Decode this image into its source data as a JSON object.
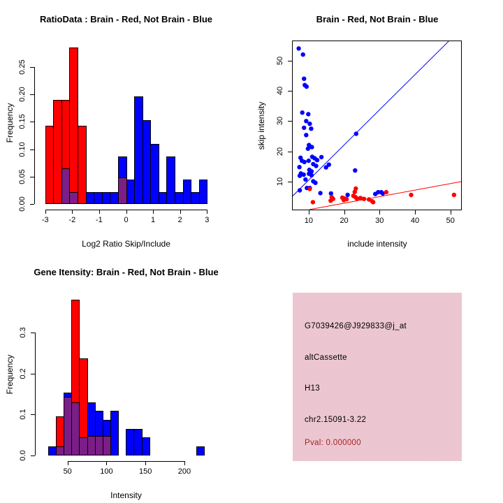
{
  "colors": {
    "red": "#FF0000",
    "blue": "#0000FF",
    "overlap": "#7B1E87",
    "pval_text": "#A82424",
    "info_bg": "#ECC4CF",
    "axis": "#000000"
  },
  "panels": {
    "ratio_hist": {
      "title": "RatioData : Brain - Red, Not Brain - Blue",
      "xlabel": "Log2 Ratio Skip/Include",
      "ylabel": "Frequency"
    },
    "scatter": {
      "title": "Brain - Red, Not Brain - Blue",
      "xlabel": "include intensity",
      "ylabel": "skip intensity"
    },
    "gene_hist": {
      "title": "Gene Itensity: Brain - Red, Not Brain - Blue",
      "xlabel": "Intensity",
      "ylabel": "Frequency"
    },
    "info_box": {
      "probe_id": "G7039426@J929833@j_at",
      "event_type": "altCassette",
      "sample_id": "H13",
      "locus": "chr2.15091-3.22",
      "pval": "Pval: 0.000000"
    }
  },
  "chart_data": [
    {
      "id": "ratio",
      "type": "bar",
      "subtype": "overlaid-histogram",
      "title": "RatioData : Brain - Red, Not Brain - Blue",
      "xlabel": "Log2 Ratio Skip/Include",
      "ylabel": "Frequency",
      "bin_width": 0.3,
      "xlim": [
        -3.2,
        3.2
      ],
      "ylim": [
        0,
        0.297
      ],
      "grid": false,
      "xticks": [
        -3,
        -2,
        -1,
        0,
        1,
        2,
        3
      ],
      "xtick_labels": [
        "-3",
        "-2",
        "-1",
        "0",
        "1",
        "2",
        "3"
      ],
      "yticks": [
        0,
        0.05,
        0.1,
        0.15,
        0.2,
        0.25
      ],
      "ytick_labels": [
        "0.00",
        "0.05",
        "0.10",
        "0.15",
        "0.20",
        "0.25"
      ],
      "series": [
        {
          "name": "brain-red",
          "color": "red",
          "bins": [
            [
              -3,
              0.143
            ],
            [
              -2.7,
              0.19
            ],
            [
              -2.4,
              0.19
            ],
            [
              -2.1,
              0.285
            ],
            [
              -1.8,
              0.143
            ]
          ]
        },
        {
          "name": "not-brain-blue",
          "color": "blue",
          "bins": [
            [
              -1.5,
              0.022
            ],
            [
              -1.2,
              0.022
            ],
            [
              -0.9,
              0.022
            ],
            [
              -0.6,
              0.022
            ],
            [
              -0.3,
              0.087
            ],
            [
              0,
              0.044
            ],
            [
              0.3,
              0.196
            ],
            [
              0.6,
              0.153
            ],
            [
              0.9,
              0.109
            ],
            [
              1.2,
              0.022
            ],
            [
              1.5,
              0.087
            ],
            [
              1.8,
              0.022
            ],
            [
              2.1,
              0.044
            ],
            [
              2.4,
              0.022
            ],
            [
              2.7,
              0.044
            ]
          ]
        },
        {
          "name": "overlap-purple",
          "color": "overlap",
          "bins": [
            [
              -2.4,
              0.065
            ],
            [
              -2.1,
              0.022
            ],
            [
              -0.3,
              0.048
            ]
          ]
        }
      ]
    },
    {
      "id": "scatter",
      "type": "scatter",
      "title": "Brain - Red, Not Brain - Blue",
      "xlabel": "include intensity",
      "ylabel": "skip intensity",
      "xlim": [
        5.5,
        53
      ],
      "ylim": [
        0.76,
        56.4
      ],
      "grid": false,
      "boxed": true,
      "xticks": [
        10,
        20,
        30,
        40,
        50
      ],
      "xtick_labels": [
        "10",
        "20",
        "30",
        "40",
        "50"
      ],
      "yticks": [
        10,
        20,
        30,
        40,
        50
      ],
      "ytick_labels": [
        "10",
        "20",
        "30",
        "40",
        "50"
      ],
      "series": [
        {
          "name": "not-brain-blue",
          "color": "blue",
          "points": [
            [
              7.2,
              54
            ],
            [
              8.4,
              52
            ],
            [
              8.7,
              44
            ],
            [
              8.9,
              41.9
            ],
            [
              9.4,
              41.4
            ],
            [
              8.2,
              32.8
            ],
            [
              9.9,
              32.3
            ],
            [
              9.3,
              30
            ],
            [
              10.3,
              29.1
            ],
            [
              8.7,
              27.8
            ],
            [
              10.7,
              27.5
            ],
            [
              9.3,
              25.4
            ],
            [
              23.4,
              25.8
            ],
            [
              10.1,
              22.1
            ],
            [
              10.9,
              21.4
            ],
            [
              9.8,
              20.9
            ],
            [
              11,
              18.2
            ],
            [
              11.7,
              17.7
            ],
            [
              12.4,
              17.1
            ],
            [
              13.6,
              18.1
            ],
            [
              7.7,
              17.9
            ],
            [
              8.1,
              16.9
            ],
            [
              8.8,
              16.5
            ],
            [
              10,
              16.9
            ],
            [
              11.3,
              15.8
            ],
            [
              12.1,
              15.2
            ],
            [
              14.9,
              14.7
            ],
            [
              7.4,
              14.8
            ],
            [
              15.7,
              15.6
            ],
            [
              10.2,
              13.9
            ],
            [
              10.8,
              13.4
            ],
            [
              23.1,
              13.7
            ],
            [
              7.8,
              12.7
            ],
            [
              8.6,
              12.3
            ],
            [
              10.1,
              12.6
            ],
            [
              10.8,
              12.1
            ],
            [
              7.5,
              11.9
            ],
            [
              9.1,
              10.7
            ],
            [
              11.3,
              10.1
            ],
            [
              11.9,
              9.6
            ],
            [
              9.5,
              7.9
            ],
            [
              10.3,
              7.9
            ],
            [
              7.5,
              7.1
            ],
            [
              13.3,
              6.2
            ],
            [
              16.3,
              6.1
            ],
            [
              21,
              5.6
            ],
            [
              28.8,
              5.9
            ],
            [
              29.6,
              6.5
            ],
            [
              30.5,
              6.5
            ],
            [
              30.9,
              6.1
            ]
          ]
        },
        {
          "name": "brain-red",
          "color": "red",
          "points": [
            [
              10.3,
              7.6
            ],
            [
              11.2,
              3.2
            ],
            [
              16.5,
              4.9
            ],
            [
              16.9,
              4.3
            ],
            [
              16.2,
              3.7
            ],
            [
              19.5,
              4.7
            ],
            [
              20.1,
              4.4
            ],
            [
              20.7,
              4.2
            ],
            [
              19.9,
              3.9
            ],
            [
              23.3,
              7.7
            ],
            [
              23,
              6.6
            ],
            [
              22.6,
              5.3
            ],
            [
              23.2,
              4.9
            ],
            [
              23.6,
              4.4
            ],
            [
              24.6,
              4.6
            ],
            [
              25.6,
              4.3
            ],
            [
              27,
              4.1
            ],
            [
              27.9,
              3.5
            ],
            [
              28.2,
              3.2
            ],
            [
              31.9,
              6.5
            ],
            [
              38.9,
              5.6
            ],
            [
              51,
              5.6
            ]
          ]
        }
      ],
      "lines": [
        {
          "name": "blue-fit-line",
          "color": "blue",
          "from": [
            5.5,
            5.27
          ],
          "to": [
            49.5,
            56.4
          ]
        },
        {
          "name": "red-fit-line",
          "color": "red",
          "from": [
            10.2,
            0.76
          ],
          "to": [
            53,
            10.0
          ]
        }
      ]
    },
    {
      "id": "gene",
      "type": "bar",
      "subtype": "overlaid-histogram",
      "title": "Gene Itensity: Brain - Red, Not Brain - Blue",
      "xlabel": "Intensity",
      "ylabel": "Frequency",
      "bin_width": 10,
      "xlim": [
        15.3,
        230.5
      ],
      "ylim": [
        0,
        0.396
      ],
      "grid": false,
      "xticks": [
        50,
        100,
        150,
        200
      ],
      "xtick_labels": [
        "50",
        "100",
        "150",
        "200"
      ],
      "yticks": [
        0,
        0.1,
        0.2,
        0.3
      ],
      "ytick_labels": [
        "0.0",
        "0.1",
        "0.2",
        "0.3"
      ],
      "series": [
        {
          "name": "brain-red",
          "color": "red",
          "bins": [
            [
              35,
              0.095
            ],
            [
              45,
              0.143
            ],
            [
              55,
              0.381
            ],
            [
              65,
              0.238
            ]
          ]
        },
        {
          "name": "not-brain-blue",
          "color": "blue",
          "bins": [
            [
              25,
              0.022
            ],
            [
              45,
              0.153
            ],
            [
              55,
              0.13
            ],
            [
              65,
              0.045
            ],
            [
              75,
              0.13
            ],
            [
              85,
              0.109
            ],
            [
              95,
              0.087
            ],
            [
              105,
              0.109
            ],
            [
              125,
              0.065
            ],
            [
              135,
              0.065
            ],
            [
              145,
              0.045
            ],
            [
              215,
              0.022
            ]
          ]
        },
        {
          "name": "overlap-purple",
          "color": "overlap",
          "bins": [
            [
              35,
              0.022
            ],
            [
              45,
              0.143
            ],
            [
              55,
              0.13
            ],
            [
              65,
              0.045
            ],
            [
              75,
              0.048
            ],
            [
              85,
              0.048
            ],
            [
              95,
              0.048
            ]
          ]
        }
      ]
    }
  ]
}
